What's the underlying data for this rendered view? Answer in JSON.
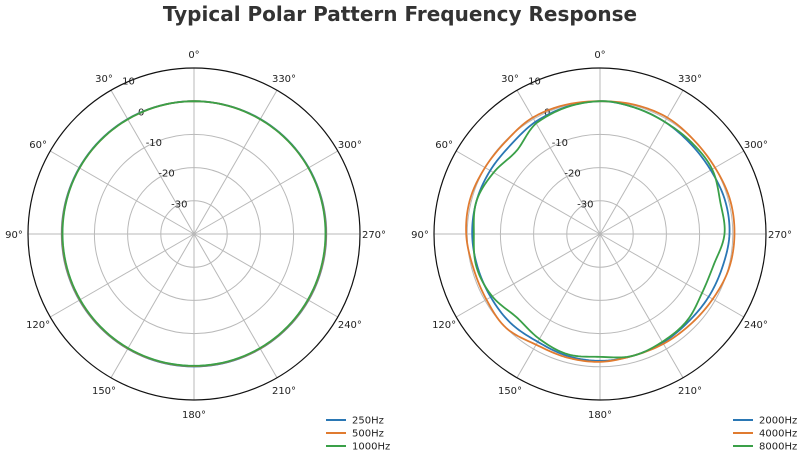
{
  "title": "Typical Polar Pattern Frequency Response",
  "colors": {
    "blue": "#2a77b4",
    "orange": "#e07b30",
    "green": "#3aa048",
    "grid": "#b9b9b9",
    "frame": "#111111"
  },
  "chart_data": [
    {
      "type": "polar-line",
      "angle_labels": [
        "0°",
        "30°",
        "60°",
        "90°",
        "120°",
        "150°",
        "180°",
        "210°",
        "240°",
        "270°",
        "300°",
        "330°"
      ],
      "angle_values": [
        0,
        30,
        60,
        90,
        120,
        150,
        180,
        210,
        240,
        270,
        300,
        330
      ],
      "angle_direction": "counterclockwise",
      "zero_location": "top",
      "rlim": [
        -40,
        10
      ],
      "r_ticks": [
        -30,
        -20,
        -10,
        0,
        10
      ],
      "r_tick_labels": [
        "-30",
        "-20",
        "-10",
        "0",
        "10"
      ],
      "grid": true,
      "legend_position": "bottom-right",
      "series": [
        {
          "name": "250Hz",
          "color": "#2a77b4",
          "angles": [
            0,
            30,
            60,
            90,
            120,
            150,
            180,
            210,
            240,
            270,
            300,
            330
          ],
          "values": [
            0,
            0,
            -0.1,
            -0.2,
            -0.2,
            -0.1,
            -0.1,
            -0.1,
            -0.2,
            -0.2,
            -0.1,
            0
          ]
        },
        {
          "name": "500Hz",
          "color": "#e07b30",
          "angles": [
            0,
            30,
            60,
            90,
            120,
            150,
            180,
            210,
            240,
            270,
            300,
            330
          ],
          "values": [
            0,
            -0.1,
            -0.2,
            -0.3,
            -0.3,
            -0.2,
            -0.2,
            -0.2,
            -0.3,
            -0.3,
            -0.2,
            -0.1
          ]
        },
        {
          "name": "1000Hz",
          "color": "#3aa048",
          "angles": [
            0,
            30,
            60,
            90,
            120,
            150,
            180,
            210,
            240,
            270,
            300,
            330
          ],
          "values": [
            0,
            -0.1,
            -0.2,
            -0.4,
            -0.4,
            -0.3,
            -0.3,
            -0.3,
            -0.4,
            -0.4,
            -0.2,
            -0.1
          ]
        }
      ]
    },
    {
      "type": "polar-line",
      "angle_labels": [
        "0°",
        "30°",
        "60°",
        "90°",
        "120°",
        "150°",
        "180°",
        "210°",
        "240°",
        "270°",
        "300°",
        "330°"
      ],
      "angle_values": [
        0,
        30,
        60,
        90,
        120,
        150,
        180,
        210,
        240,
        270,
        300,
        330
      ],
      "angle_direction": "counterclockwise",
      "zero_location": "top",
      "rlim": [
        -40,
        10
      ],
      "r_ticks": [
        -30,
        -20,
        -10,
        0,
        10
      ],
      "r_tick_labels": [
        "-30",
        "-20",
        "-10",
        "0",
        "10"
      ],
      "grid": true,
      "legend_position": "bottom-right",
      "series": [
        {
          "name": "2000Hz",
          "color": "#2a77b4",
          "angles": [
            0,
            30,
            45,
            60,
            75,
            90,
            105,
            120,
            135,
            150,
            165,
            180,
            195,
            210,
            225,
            240,
            255,
            270,
            285,
            300,
            315,
            330,
            345
          ],
          "values": [
            0,
            -1,
            -2,
            -1.8,
            -1.5,
            -1.5,
            -1.8,
            -2,
            -2,
            -2.5,
            -2,
            -1.8,
            -2,
            -2.2,
            -2.5,
            -2.2,
            -1.8,
            -1,
            -1,
            -1.5,
            -1.5,
            -1,
            -0.5
          ]
        },
        {
          "name": "4000Hz",
          "color": "#e07b30",
          "angles": [
            0,
            30,
            45,
            60,
            75,
            90,
            105,
            120,
            135,
            150,
            165,
            180,
            195,
            210,
            225,
            240,
            255,
            270,
            285,
            300,
            315,
            330,
            345
          ],
          "values": [
            0,
            0.5,
            -0.2,
            0,
            0.5,
            0.3,
            -0.5,
            -0.5,
            0,
            -1.5,
            -1.5,
            -1.5,
            -2,
            -1.8,
            -1.5,
            -0.8,
            0.2,
            0.5,
            0.5,
            0,
            0,
            0.5,
            0.3
          ]
        },
        {
          "name": "8000Hz",
          "color": "#3aa048",
          "angles": [
            0,
            30,
            45,
            60,
            75,
            90,
            105,
            120,
            135,
            150,
            165,
            180,
            195,
            210,
            225,
            240,
            255,
            270,
            285,
            300,
            315,
            330,
            345
          ],
          "values": [
            0,
            -1.5,
            -4.5,
            -3,
            -1.5,
            -2,
            -1.5,
            -2.5,
            -4.5,
            -3.5,
            -2.5,
            -3,
            -2,
            -2.5,
            -3,
            -4.5,
            -4.5,
            -2.5,
            -2.5,
            -1,
            -1,
            -1,
            -0.5
          ]
        }
      ]
    }
  ]
}
